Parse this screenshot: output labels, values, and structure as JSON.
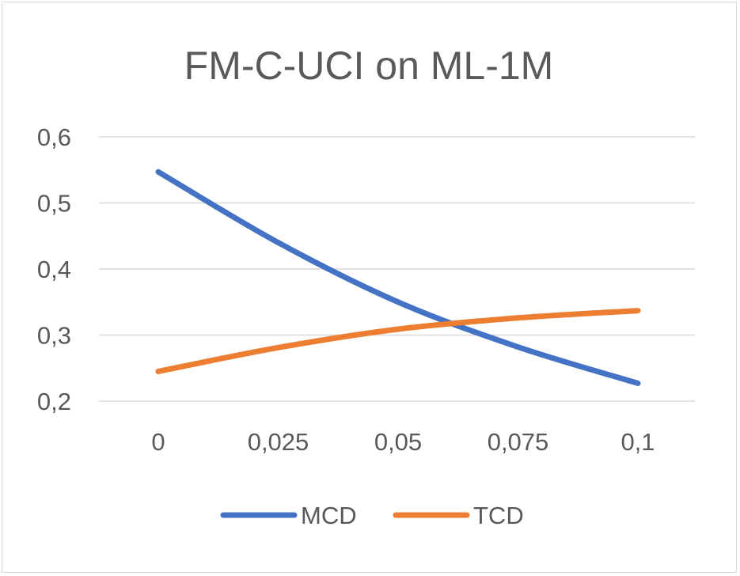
{
  "chart_data": {
    "type": "line",
    "title": "FM-C-UCI on ML-1M",
    "xlabel": "",
    "ylabel": "",
    "categories": [
      "0",
      "0,025",
      "0,05",
      "0,075",
      "0,1"
    ],
    "ylim": [
      0.2,
      0.6
    ],
    "yticks": [
      "0,2",
      "0,3",
      "0,4",
      "0,5",
      "0,6"
    ],
    "grid": true,
    "legend_position": "bottom",
    "series": [
      {
        "name": "MCD",
        "color": "#4472C4",
        "values": [
          0.547,
          0.44,
          0.35,
          0.282,
          0.227
        ]
      },
      {
        "name": "TCD",
        "color": "#ED7D31",
        "values": [
          0.245,
          0.281,
          0.309,
          0.326,
          0.337
        ]
      }
    ]
  }
}
